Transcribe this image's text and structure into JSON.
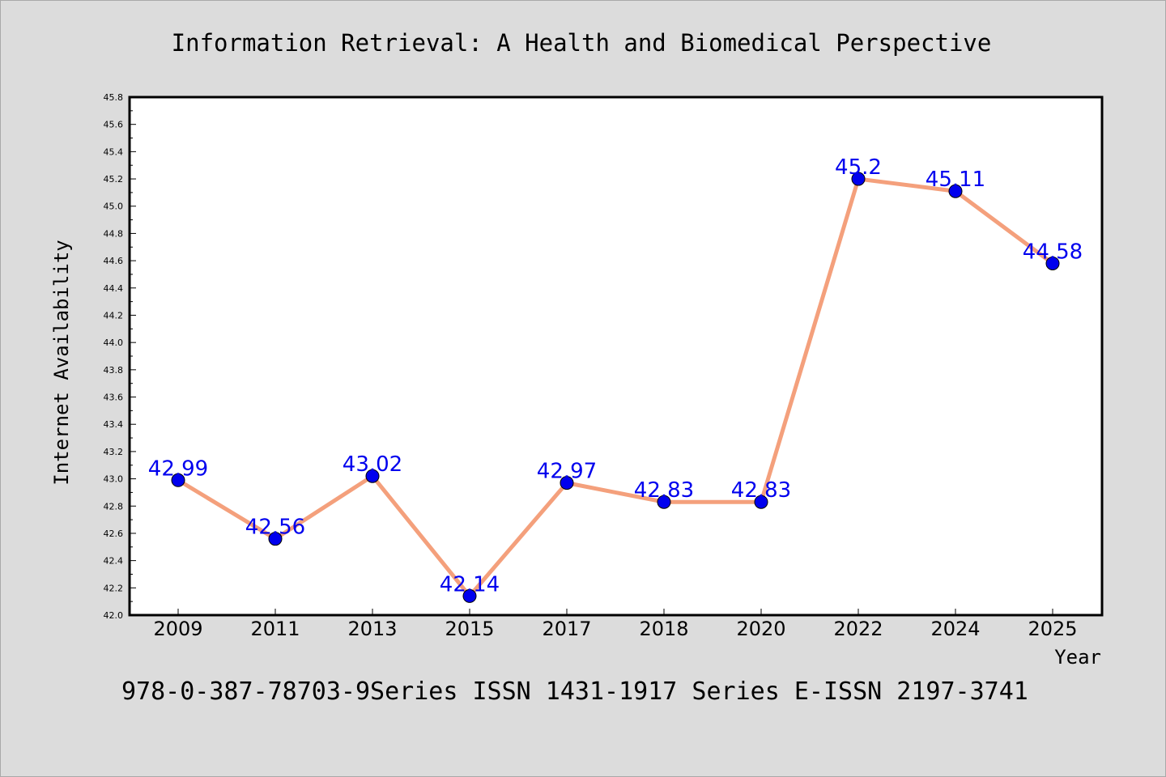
{
  "chart_data": {
    "type": "line",
    "title": "Information Retrieval: A Health and Biomedical Perspective",
    "xlabel": "Year",
    "ylabel": "Internet Availability",
    "categories": [
      "2009",
      "2011",
      "2013",
      "2015",
      "2017",
      "2018",
      "2020",
      "2022",
      "2024",
      "2025"
    ],
    "series": [
      {
        "values": [
          42.99,
          42.56,
          43.02,
          42.14,
          42.97,
          42.83,
          42.83,
          45.2,
          45.11,
          44.58
        ],
        "labels": [
          "42.99",
          "42.56",
          "43.02",
          "42.14",
          "42.97",
          "42.83",
          "42.83",
          "45.2",
          "45.11",
          "44.58"
        ]
      }
    ],
    "ylim": [
      42.0,
      45.8
    ],
    "yticks": [
      "42.0",
      "42.2",
      "42.4",
      "42.6",
      "42.8",
      "43.0",
      "43.2",
      "43.4",
      "43.6",
      "43.8",
      "44.0",
      "44.2",
      "44.4",
      "44.6",
      "44.8",
      "45.0",
      "45.2",
      "45.4",
      "45.6",
      "45.8"
    ],
    "grid": false,
    "colors": {
      "line": "#f4a07c",
      "marker": "#0000ee",
      "label": "#0000ee",
      "background": "#dcdcdc",
      "plot_background": "#ffffff"
    }
  },
  "footer": "978-0-387-78703-9Series ISSN 1431-1917 Series E-ISSN 2197-3741"
}
